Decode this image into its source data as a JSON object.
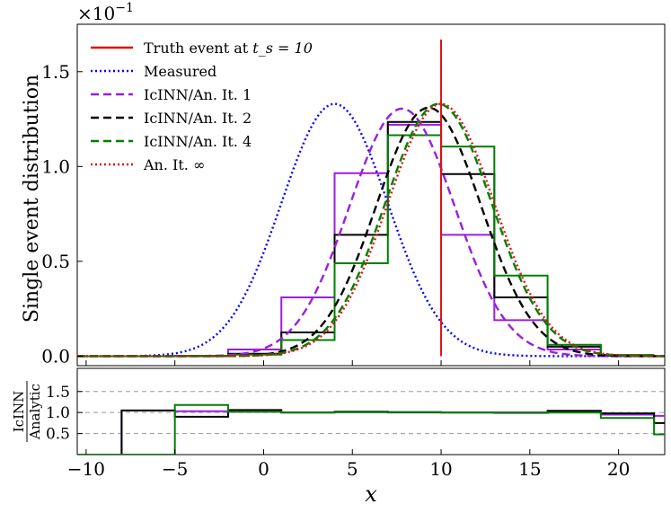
{
  "chart_data": [
    {
      "type": "line",
      "ylabel": "Single event distribution",
      "xlabel": "x",
      "scale_factor": "×10",
      "scale_exponent": "−1",
      "xlim": [
        -10.5,
        22.6
      ],
      "ylim": [
        -0.005,
        0.175
      ],
      "xticks": [
        -10,
        -5,
        0,
        5,
        10,
        15,
        20
      ],
      "yticks": [
        0.0,
        0.5,
        1.0,
        1.5
      ],
      "ytick_values": [
        0.0,
        0.05,
        0.1,
        0.15
      ],
      "grid": false,
      "legend_position": "top-left",
      "truth_event_x": 10,
      "curves": [
        {
          "key": "measured",
          "label": "Measured",
          "color": "#0000ff",
          "style": "dotted",
          "mean": 4.0,
          "sd": 3.0,
          "peak": 0.133
        },
        {
          "key": "it1",
          "label": "IcINN/An. It. 1",
          "color": "#9a1ee0",
          "style": "dashed",
          "mean": 7.8,
          "sd": 2.96,
          "peak": 0.1305
        },
        {
          "key": "it2",
          "label": "IcINN/An. It. 2",
          "color": "#000000",
          "style": "dashed",
          "mean": 9.3,
          "sd": 2.95,
          "peak": 0.131
        },
        {
          "key": "it4",
          "label": "IcINN/An. It. 4",
          "color": "#008000",
          "style": "dashed",
          "mean": 9.85,
          "sd": 3.0,
          "peak": 0.133
        },
        {
          "key": "inf",
          "label": "An. It. ∞",
          "color": "#e01010",
          "style": "dotted",
          "mean": 10.0,
          "sd": 3.0,
          "peak": 0.133
        }
      ],
      "hist_edges": [
        -11,
        -8,
        -5,
        -2,
        1,
        4,
        7,
        10,
        13,
        16,
        19,
        22
      ],
      "histograms": [
        {
          "key": "it1",
          "color": "#9a1ee0",
          "values": [
            0,
            0,
            0.0001,
            0.0035,
            0.031,
            0.0965,
            0.122,
            0.064,
            0.019,
            0.0035,
            0.0002
          ]
        },
        {
          "key": "it2",
          "color": "#000000",
          "values": [
            0,
            0,
            0.0001,
            0.0013,
            0.0125,
            0.064,
            0.1235,
            0.096,
            0.031,
            0.005,
            0.0005
          ]
        },
        {
          "key": "it4",
          "color": "#008000",
          "values": [
            0,
            0,
            0.0001,
            0.0008,
            0.0085,
            0.049,
            0.1165,
            0.1105,
            0.0425,
            0.006,
            0.0006
          ]
        }
      ],
      "legend": [
        {
          "label_prefix": "Truth event at ",
          "label_math": "t_s = 10",
          "color": "#e01010",
          "style": "solid"
        },
        {
          "label": "Measured",
          "color": "#0000ff",
          "style": "dotted"
        },
        {
          "label": "IcINN/An. It. 1",
          "color": "#9a1ee0",
          "style": "dashed"
        },
        {
          "label": "IcINN/An. It. 2",
          "color": "#000000",
          "style": "dashed"
        },
        {
          "label": "IcINN/An. It. 4",
          "color": "#008000",
          "style": "dashed"
        },
        {
          "label": "An. It. ∞",
          "color": "#e01010",
          "style": "dotted"
        }
      ]
    },
    {
      "type": "line",
      "ylabel_numerator": "IcINN",
      "ylabel_denominator": "Analytic",
      "xlabel": "x",
      "xlim": [
        -10.5,
        22.6
      ],
      "ylim": [
        0.0,
        2.05
      ],
      "yticks": [
        0.5,
        1.0,
        1.5
      ],
      "reference_lines": [
        0.5,
        1.0,
        1.5
      ],
      "hist_edges": [
        -11,
        -8,
        -5,
        -2,
        1,
        4,
        7,
        10,
        13,
        16,
        19,
        22,
        23
      ],
      "ratios": [
        {
          "key": "it1",
          "color": "#9a1ee0",
          "values": [
            null,
            1.05,
            1.03,
            1.02,
            1.0,
            1.01,
            1.0,
            1.0,
            0.99,
            1.0,
            0.95,
            0.92
          ]
        },
        {
          "key": "it2",
          "color": "#000000",
          "values": [
            null,
            1.05,
            0.9,
            1.06,
            1.0,
            1.02,
            1.01,
            1.0,
            1.0,
            1.04,
            0.98,
            0.75
          ]
        },
        {
          "key": "it4",
          "color": "#008000",
          "values": [
            null,
            null,
            1.18,
            1.02,
            1.0,
            1.01,
            1.01,
            1.0,
            1.0,
            1.0,
            0.87,
            0.48
          ]
        }
      ]
    }
  ]
}
